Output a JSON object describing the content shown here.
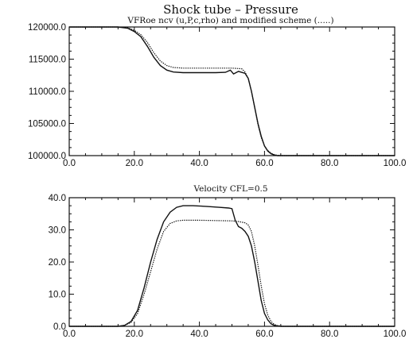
{
  "figure_title": "Shock tube – Pressure",
  "chart_data": [
    {
      "type": "line",
      "title": "VFRoe ncv (u,P,c,rho) and modified scheme (.....)",
      "xlim": [
        0,
        100
      ],
      "ylim": [
        100000,
        120000
      ],
      "x_ticks": [
        "0.0",
        "20.0",
        "40.0",
        "60.0",
        "80.0",
        "100.0"
      ],
      "y_ticks": [
        "100000.0",
        "105000.0",
        "110000.0",
        "115000.0",
        "120000.0"
      ],
      "grid": false,
      "series": [
        {
          "style": "solid",
          "x": [
            0,
            15,
            18,
            20,
            22,
            24,
            26,
            28,
            30,
            32,
            35,
            40,
            45,
            48,
            49.5,
            50.5,
            52,
            54,
            55,
            56,
            57,
            58,
            59,
            60,
            61,
            62,
            63,
            64,
            65,
            67,
            70,
            100
          ],
          "y": [
            120000,
            120000,
            119800,
            119300,
            118500,
            117000,
            115300,
            114000,
            113300,
            113000,
            112900,
            112900,
            112900,
            112950,
            113300,
            112700,
            113100,
            112800,
            112000,
            110000,
            107500,
            105000,
            103000,
            101500,
            100700,
            100300,
            100100,
            100000,
            100000,
            100000,
            100000,
            100000
          ]
        },
        {
          "style": "dotted",
          "x": [
            0,
            15,
            18,
            20,
            22,
            24,
            26,
            28,
            30,
            32,
            35,
            40,
            45,
            50,
            53,
            54,
            55,
            56,
            57,
            58,
            59,
            60,
            61,
            62,
            63,
            64,
            65,
            67,
            70,
            100
          ],
          "y": [
            120000,
            120000,
            119900,
            119500,
            118800,
            117600,
            116000,
            114700,
            114000,
            113700,
            113600,
            113600,
            113600,
            113600,
            113500,
            113000,
            112000,
            110000,
            107500,
            104800,
            102800,
            101500,
            100800,
            100400,
            100150,
            100050,
            100000,
            100000,
            100000,
            100000
          ]
        }
      ]
    },
    {
      "type": "line",
      "title": "Velocity CFL=0.5",
      "xlim": [
        0,
        100
      ],
      "ylim": [
        0,
        40
      ],
      "x_ticks": [
        "0.0",
        "20.0",
        "40.0",
        "60.0",
        "80.0",
        "100.0"
      ],
      "y_ticks": [
        "0.0",
        "10.0",
        "20.0",
        "30.0",
        "40.0"
      ],
      "grid": false,
      "series": [
        {
          "style": "solid",
          "x": [
            0,
            15,
            17,
            19,
            21,
            23,
            25,
            27,
            29,
            31,
            33,
            35,
            38,
            42,
            46,
            49,
            50,
            51,
            52,
            53,
            54,
            55,
            56,
            57,
            58,
            59,
            60,
            61,
            62,
            63,
            65,
            67,
            70,
            100
          ],
          "y": [
            0,
            0,
            0.3,
            1.5,
            5,
            12,
            20,
            27,
            32.5,
            35.5,
            37,
            37.5,
            37.5,
            37.3,
            37,
            36.8,
            36.6,
            33,
            31,
            30.5,
            29.5,
            28,
            25,
            20,
            14,
            8,
            4,
            2,
            0.8,
            0.3,
            0,
            0,
            0,
            0
          ]
        },
        {
          "style": "dotted",
          "x": [
            0,
            15,
            17,
            19,
            21,
            23,
            25,
            27,
            29,
            31,
            33,
            35,
            40,
            45,
            50,
            52,
            54,
            55,
            56,
            57,
            58,
            59,
            60,
            61,
            62,
            63,
            64,
            66,
            70,
            100
          ],
          "y": [
            0,
            0,
            0.3,
            1.2,
            4,
            10,
            17,
            24,
            29.5,
            32,
            32.8,
            33,
            33,
            32.9,
            32.8,
            32.6,
            32.2,
            31.5,
            29.5,
            25,
            19,
            12.5,
            7,
            3.5,
            1.5,
            0.6,
            0.2,
            0,
            0,
            0
          ]
        }
      ]
    }
  ]
}
